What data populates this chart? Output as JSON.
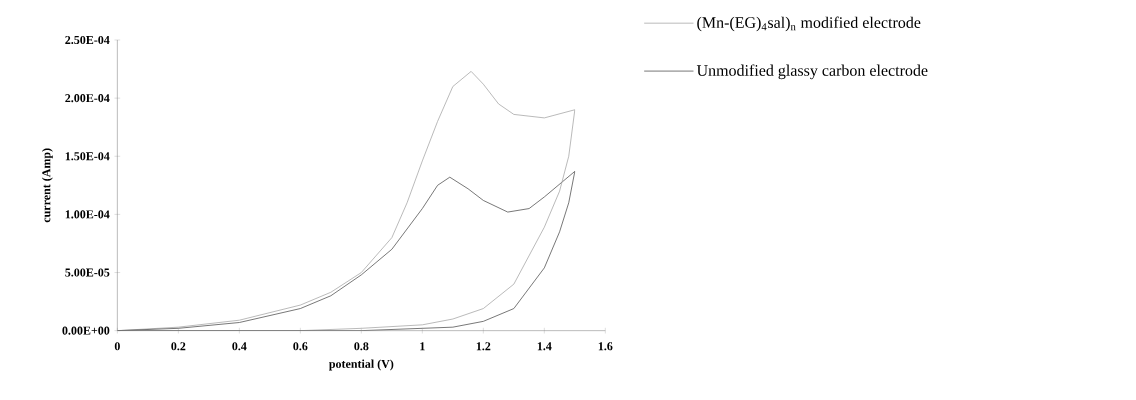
{
  "chart_data": {
    "type": "line",
    "xlabel": "potential (V)",
    "ylabel": "current (Amp)",
    "xlim": [
      0,
      1.6
    ],
    "xticks": [
      0,
      0.2,
      0.4,
      0.6,
      0.8,
      1,
      1.2,
      1.4,
      1.6
    ],
    "ylim": [
      0,
      0.00025
    ],
    "yticks": [
      {
        "value": 0,
        "label": "0.00E+00"
      },
      {
        "value": 5e-05,
        "label": "5.00E-05"
      },
      {
        "value": 0.0001,
        "label": "1.00E-04"
      },
      {
        "value": 0.00015,
        "label": "1.50E-04"
      },
      {
        "value": 0.0002,
        "label": "2.00E-04"
      },
      {
        "value": 0.00025,
        "label": "2.50E-04"
      }
    ],
    "grid": false,
    "legend": "top right",
    "marker": "none",
    "line_style": "solid",
    "series": [
      {
        "name": "(Mn-(EG)$_{4}$sal)$_{n}$ modified electrode",
        "color": "#a8a8a8",
        "x": [
          0,
          0.2,
          0.4,
          0.6,
          0.7,
          0.8,
          0.9,
          0.95,
          1.0,
          1.05,
          1.1,
          1.16,
          1.2,
          1.25,
          1.3,
          1.4,
          1.5
        ],
        "values": [
          0,
          3e-06,
          9e-06,
          2.2e-05,
          3.3e-05,
          5e-05,
          8e-05,
          0.00011,
          0.000146,
          0.00018,
          0.00021,
          0.000223,
          0.000212,
          0.000195,
          0.000186,
          0.000183,
          0.00019
        ]
      },
      {
        "name": "Unmodified glassy carbon electrode",
        "color": "#555555",
        "x": [
          0,
          0.2,
          0.4,
          0.6,
          0.7,
          0.8,
          0.9,
          1.0,
          1.05,
          1.09,
          1.15,
          1.2,
          1.28,
          1.35,
          1.4,
          1.5
        ],
        "values": [
          0,
          2e-06,
          7e-06,
          1.9e-05,
          3e-05,
          4.8e-05,
          7e-05,
          0.000105,
          0.000125,
          0.000132,
          0.000122,
          0.000112,
          0.000102,
          0.000105,
          0.000115,
          0.000137
        ]
      },
      {
        "color": "#a8a8a8",
        "x": [
          1.5,
          1.48,
          1.45,
          1.4,
          1.3,
          1.2,
          1.1,
          1.0,
          0.8,
          0.6,
          0
        ],
        "values": [
          0.00019,
          0.00015,
          0.00012,
          8.9e-05,
          4e-05,
          1.9e-05,
          1e-05,
          5e-06,
          2e-06,
          0,
          0
        ]
      },
      {
        "color": "#555555",
        "x": [
          1.5,
          1.48,
          1.45,
          1.4,
          1.3,
          1.2,
          1.1,
          1.0,
          0.8,
          0.6,
          0
        ],
        "values": [
          0.000137,
          0.00011,
          8.5e-05,
          5.4e-05,
          1.9e-05,
          8e-06,
          3e-06,
          2e-06,
          0,
          0,
          0
        ]
      }
    ]
  }
}
